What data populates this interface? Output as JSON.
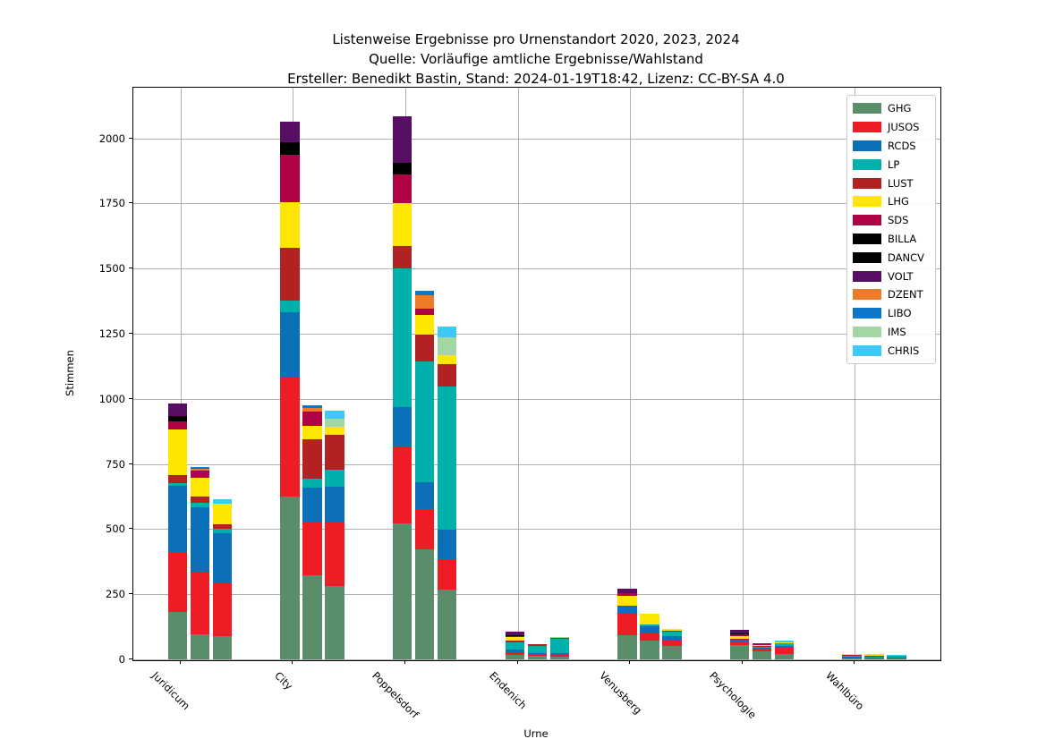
{
  "title": {
    "line1": "Listenweise Ergebnisse pro Urnenstandort 2020, 2023, 2024",
    "line2": "Quelle: Vorläufige amtliche Ergebnisse/Wahlstand",
    "line3": "Ersteller: Benedikt Bastin, Stand: 2024-01-19T18:42, Lizenz: CC-BY-SA 4.0"
  },
  "axes": {
    "xlabel": "Urne",
    "ylabel": "Stimmen",
    "yticks": [
      0,
      250,
      500,
      750,
      1000,
      1250,
      1500,
      1750,
      2000
    ],
    "ylim": [
      0,
      2190
    ],
    "grid": true,
    "legend_position": "upper right"
  },
  "chart_data": {
    "type": "bar",
    "stacked": true,
    "bars_per_category": [
      "2020",
      "2023",
      "2024"
    ],
    "title": "Listenweise Ergebnisse pro Urnenstandort 2020, 2023, 2024",
    "xlabel": "Urne",
    "ylabel": "Stimmen",
    "categories": [
      "Juridicum",
      "City",
      "Poppelsdorf",
      "Endenich",
      "Venusberg",
      "Psychologie",
      "Wahlbüro"
    ],
    "parties": [
      {
        "name": "GHG",
        "color": "#5a8e6b"
      },
      {
        "name": "JUSOS",
        "color": "#ee1c25"
      },
      {
        "name": "RCDS",
        "color": "#0b70b8"
      },
      {
        "name": "LP",
        "color": "#00b0ab"
      },
      {
        "name": "LUST",
        "color": "#b22222"
      },
      {
        "name": "LHG",
        "color": "#ffe600"
      },
      {
        "name": "SDS",
        "color": "#b00345"
      },
      {
        "name": "BILLA",
        "color": "#000000"
      },
      {
        "name": "DANCV",
        "color": "#000000"
      },
      {
        "name": "VOLT",
        "color": "#570f63"
      },
      {
        "name": "DZENT",
        "color": "#ec7c2a"
      },
      {
        "name": "LIBO",
        "color": "#0d78c9"
      },
      {
        "name": "IMS",
        "color": "#a3d6a0"
      },
      {
        "name": "CHRIS",
        "color": "#3ec8f5"
      }
    ],
    "values_order": "per category, arrays for 2020/2023/2024, each aligned to parties list (stack bottom to top)",
    "values": {
      "Juridicum": {
        "2020": [
          183,
          229,
          255,
          10,
          30,
          175,
          31,
          11,
          10,
          48,
          0,
          0,
          0,
          0
        ],
        "2023": [
          97,
          241,
          246,
          17,
          23,
          74,
          26,
          0,
          0,
          0,
          8,
          8,
          0,
          0
        ],
        "2024": [
          88,
          204,
          192,
          16,
          19,
          80,
          0,
          0,
          0,
          0,
          0,
          0,
          0,
          17
        ]
      },
      "City": {
        "2020": [
          626,
          456,
          251,
          43,
          202,
          176,
          183,
          25,
          24,
          77,
          0,
          0,
          0,
          0
        ],
        "2023": [
          323,
          201,
          134,
          35,
          152,
          51,
          55,
          0,
          0,
          0,
          14,
          10,
          0,
          0
        ],
        "2024": [
          280,
          244,
          140,
          63,
          136,
          31,
          0,
          0,
          0,
          0,
          0,
          0,
          29,
          32
        ]
      },
      "Poppelsdorf": {
        "2020": [
          521,
          295,
          151,
          532,
          86,
          166,
          109,
          24,
          22,
          177,
          0,
          0,
          0,
          0
        ],
        "2023": [
          423,
          155,
          101,
          466,
          103,
          74,
          23,
          0,
          0,
          0,
          52,
          17,
          0,
          0
        ],
        "2024": [
          269,
          117,
          112,
          549,
          86,
          34,
          0,
          0,
          0,
          0,
          0,
          0,
          69,
          40
        ]
      },
      "Endenich": {
        "2020": [
          16,
          10,
          11,
          28,
          7,
          14,
          3,
          3,
          2,
          13,
          0,
          0,
          0,
          0
        ],
        "2023": [
          14,
          6,
          5,
          28,
          4,
          0,
          0,
          0,
          0,
          0,
          0,
          0,
          0,
          0
        ],
        "2024": [
          9,
          11,
          3,
          55,
          6,
          0,
          0,
          0,
          0,
          0,
          0,
          0,
          3,
          0
        ]
      },
      "Venusberg": {
        "2020": [
          92,
          83,
          30,
          0,
          0,
          39,
          11,
          0,
          0,
          15,
          0,
          0,
          0,
          0
        ],
        "2023": [
          72,
          28,
          26,
          8,
          0,
          40,
          0,
          0,
          0,
          0,
          0,
          0,
          0,
          0
        ],
        "2024": [
          52,
          20,
          17,
          16,
          6,
          7,
          0,
          0,
          0,
          0,
          0,
          0,
          0,
          0
        ]
      },
      "Psychologie": {
        "2020": [
          54,
          12,
          12,
          0,
          2,
          8,
          7,
          4,
          2,
          11,
          0,
          0,
          0,
          0
        ],
        "2023": [
          31,
          8,
          6,
          2,
          3,
          6,
          5,
          0,
          0,
          0,
          0,
          0,
          0,
          0
        ],
        "2024": [
          20,
          25,
          8,
          8,
          0,
          3,
          0,
          0,
          0,
          0,
          0,
          0,
          0,
          8
        ]
      },
      "Wahlbüro": {
        "2020": [
          4,
          5,
          3,
          1,
          4,
          5,
          0,
          0,
          0,
          0,
          0,
          0,
          0,
          0
        ],
        "2023": [
          4,
          4,
          3,
          1,
          3,
          5,
          0,
          0,
          0,
          0,
          0,
          0,
          0,
          0
        ],
        "2024": [
          3,
          3,
          2,
          8,
          0,
          0,
          0,
          0,
          0,
          0,
          0,
          0,
          0,
          2
        ]
      }
    }
  }
}
